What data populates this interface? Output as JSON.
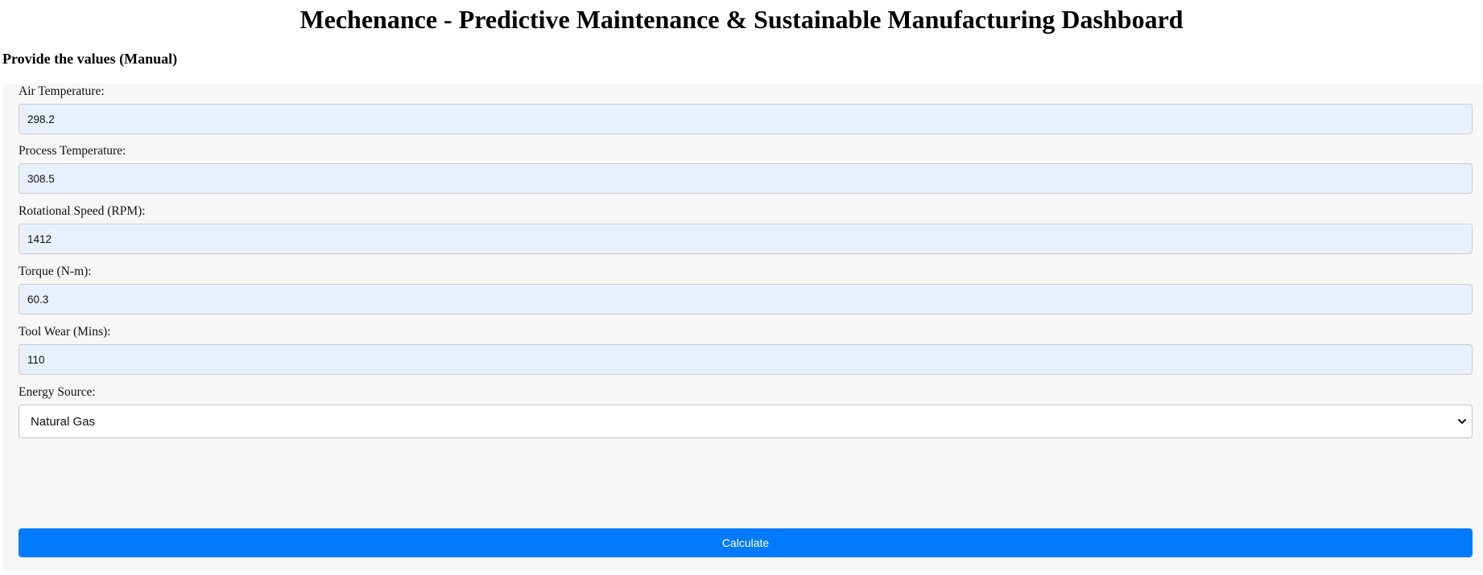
{
  "header": {
    "title": "Mechenance - Predictive Maintenance & Sustainable Manufacturing Dashboard"
  },
  "section": {
    "title": "Provide the values (Manual)"
  },
  "form": {
    "fields": [
      {
        "label": "Air Temperature:",
        "value": "298.2"
      },
      {
        "label": "Process Temperature:",
        "value": "308.5"
      },
      {
        "label": "Rotational Speed (RPM):",
        "value": "1412"
      },
      {
        "label": "Torque (N-m):",
        "value": "60.3"
      },
      {
        "label": "Tool Wear (Mins):",
        "value": "110"
      }
    ],
    "energy_source": {
      "label": "Energy Source:",
      "selected": "Natural Gas"
    },
    "submit_label": "Calculate"
  },
  "colors": {
    "page_background": "#ffffff",
    "panel_background": "#f7f7f7",
    "input_background": "#e8f0fe",
    "button_background": "#007bff",
    "button_text": "#ffffff"
  },
  "icons": {
    "select_arrow": "chevron-down-icon"
  }
}
